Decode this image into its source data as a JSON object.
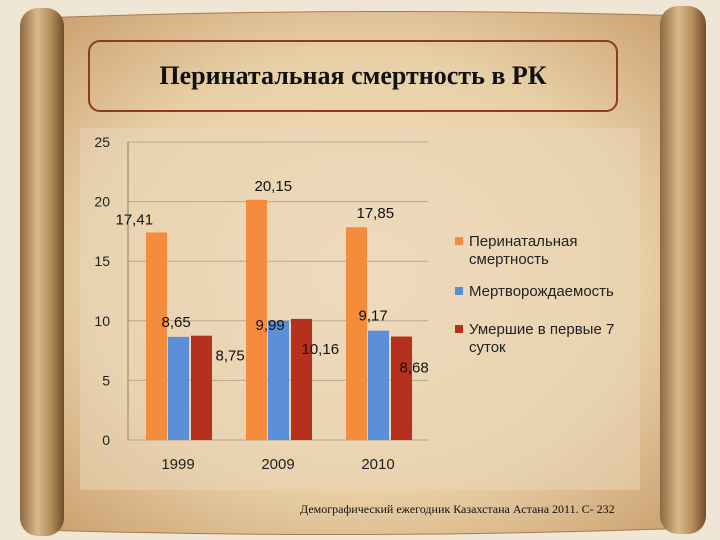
{
  "slide": {
    "title": "Перинатальная смертность в РК",
    "source": "Демографический ежегодник Казахстана Астана 2011. С- 232"
  },
  "chart_data": {
    "type": "bar",
    "categories": [
      "1999",
      "2009",
      "2010"
    ],
    "series": [
      {
        "name": "Перинатальная смертность",
        "color": "#f58b3c",
        "values": [
          17.41,
          20.15,
          17.85
        ]
      },
      {
        "name": "Мертворождаемость",
        "color": "#5b8fd8",
        "values": [
          8.65,
          9.99,
          9.17
        ]
      },
      {
        "name": "Умершие в первые 7 суток",
        "color": "#b5301d",
        "values": [
          8.75,
          10.16,
          8.68
        ]
      }
    ],
    "data_labels": [
      [
        "17,41",
        "20,15",
        "17,85"
      ],
      [
        "8,65",
        "9,99",
        "9,17"
      ],
      [
        "8,75",
        "10,16",
        "8,68"
      ]
    ],
    "yticks": [
      "0",
      "5",
      "10",
      "15",
      "20",
      "25"
    ],
    "ylim": [
      0,
      25
    ],
    "grid": true,
    "legend_position": "right"
  }
}
